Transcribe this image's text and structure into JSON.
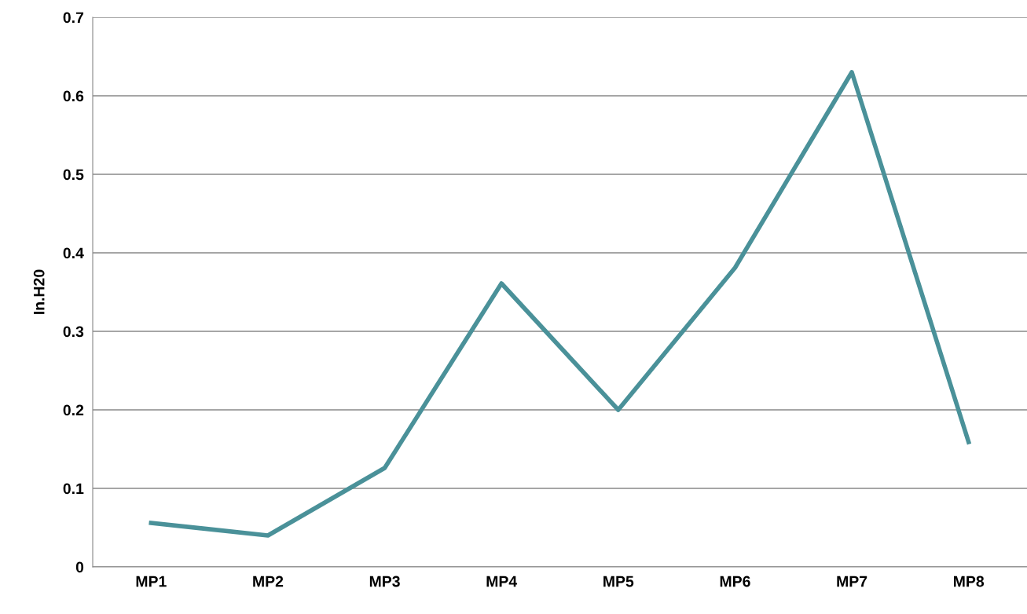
{
  "chart_data": {
    "type": "line",
    "ylabel": "In.H20",
    "categories": [
      "MP1",
      "MP2",
      "MP3",
      "MP4",
      "MP5",
      "MP6",
      "MP7",
      "MP8"
    ],
    "series": [
      {
        "color": "#4a9199",
        "values": [
          0.056,
          0.04,
          0.126,
          0.361,
          0.2,
          0.381,
          0.63,
          0.159
        ]
      }
    ],
    "ylim": [
      0,
      0.7
    ],
    "yticks": [
      0,
      0.1,
      0.2,
      0.3,
      0.4,
      0.5,
      0.6,
      0.7
    ],
    "grid": "y",
    "marker": "none",
    "line_style": "solid"
  }
}
